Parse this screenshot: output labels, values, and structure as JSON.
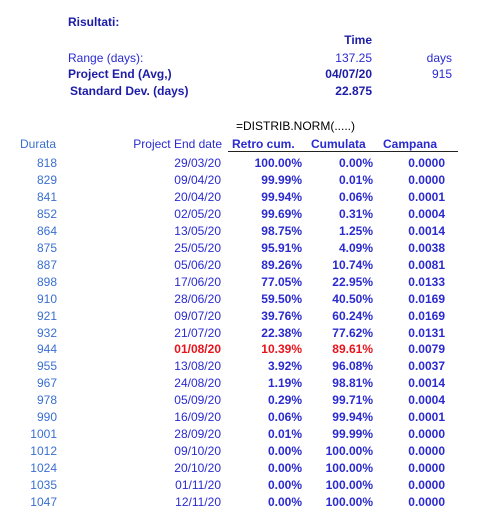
{
  "summary": {
    "title": "Risultati:",
    "column_header": "Time",
    "range_label": "Range  (days):",
    "range_value": "137.25",
    "range_unit": "days",
    "end_label": "Project End (Avg,)",
    "end_value": "04/07/20",
    "end_extra": "915",
    "std_label": "Standard Dev. (days)",
    "std_value": "22.875"
  },
  "formula": "=DISTRIB.NORM(.....)",
  "table": {
    "headers": [
      "Durata",
      "Project End date",
      "Retro cum.",
      "Cumulata",
      "Campana"
    ],
    "highlight_color": "#e8141c",
    "rows": [
      {
        "durata": "818",
        "date": "29/03/20",
        "retro": "100.00%",
        "cumulata": "0.00%",
        "campana": "0.0000"
      },
      {
        "durata": "829",
        "date": "09/04/20",
        "retro": "99.99%",
        "cumulata": "0.01%",
        "campana": "0.0000"
      },
      {
        "durata": "841",
        "date": "20/04/20",
        "retro": "99.94%",
        "cumulata": "0.06%",
        "campana": "0.0001"
      },
      {
        "durata": "852",
        "date": "02/05/20",
        "retro": "99.69%",
        "cumulata": "0.31%",
        "campana": "0.0004"
      },
      {
        "durata": "864",
        "date": "13/05/20",
        "retro": "98.75%",
        "cumulata": "1.25%",
        "campana": "0.0014"
      },
      {
        "durata": "875",
        "date": "25/05/20",
        "retro": "95.91%",
        "cumulata": "4.09%",
        "campana": "0.0038"
      },
      {
        "durata": "887",
        "date": "05/06/20",
        "retro": "89.26%",
        "cumulata": "10.74%",
        "campana": "0.0081"
      },
      {
        "durata": "898",
        "date": "17/06/20",
        "retro": "77.05%",
        "cumulata": "22.95%",
        "campana": "0.0133"
      },
      {
        "durata": "910",
        "date": "28/06/20",
        "retro": "59.50%",
        "cumulata": "40.50%",
        "campana": "0.0169"
      },
      {
        "durata": "921",
        "date": "09/07/20",
        "retro": "39.76%",
        "cumulata": "60.24%",
        "campana": "0.0169"
      },
      {
        "durata": "932",
        "date": "21/07/20",
        "retro": "22.38%",
        "cumulata": "77.62%",
        "campana": "0.0131"
      },
      {
        "durata": "944",
        "date": "01/08/20",
        "retro": "10.39%",
        "cumulata": "89.61%",
        "campana": "0.0079",
        "highlight": true
      },
      {
        "durata": "955",
        "date": "13/08/20",
        "retro": "3.92%",
        "cumulata": "96.08%",
        "campana": "0.0037"
      },
      {
        "durata": "967",
        "date": "24/08/20",
        "retro": "1.19%",
        "cumulata": "98.81%",
        "campana": "0.0014"
      },
      {
        "durata": "978",
        "date": "05/09/20",
        "retro": "0.29%",
        "cumulata": "99.71%",
        "campana": "0.0004"
      },
      {
        "durata": "990",
        "date": "16/09/20",
        "retro": "0.06%",
        "cumulata": "99.94%",
        "campana": "0.0001"
      },
      {
        "durata": "1001",
        "date": "28/09/20",
        "retro": "0.01%",
        "cumulata": "99.99%",
        "campana": "0.0000"
      },
      {
        "durata": "1012",
        "date": "09/10/20",
        "retro": "0.00%",
        "cumulata": "100.00%",
        "campana": "0.0000"
      },
      {
        "durata": "1024",
        "date": "20/10/20",
        "retro": "0.00%",
        "cumulata": "100.00%",
        "campana": "0.0000"
      },
      {
        "durata": "1035",
        "date": "01/11/20",
        "retro": "0.00%",
        "cumulata": "100.00%",
        "campana": "0.0000"
      },
      {
        "durata": "1047",
        "date": "12/11/20",
        "retro": "0.00%",
        "cumulata": "100.00%",
        "campana": "0.0000"
      }
    ]
  }
}
